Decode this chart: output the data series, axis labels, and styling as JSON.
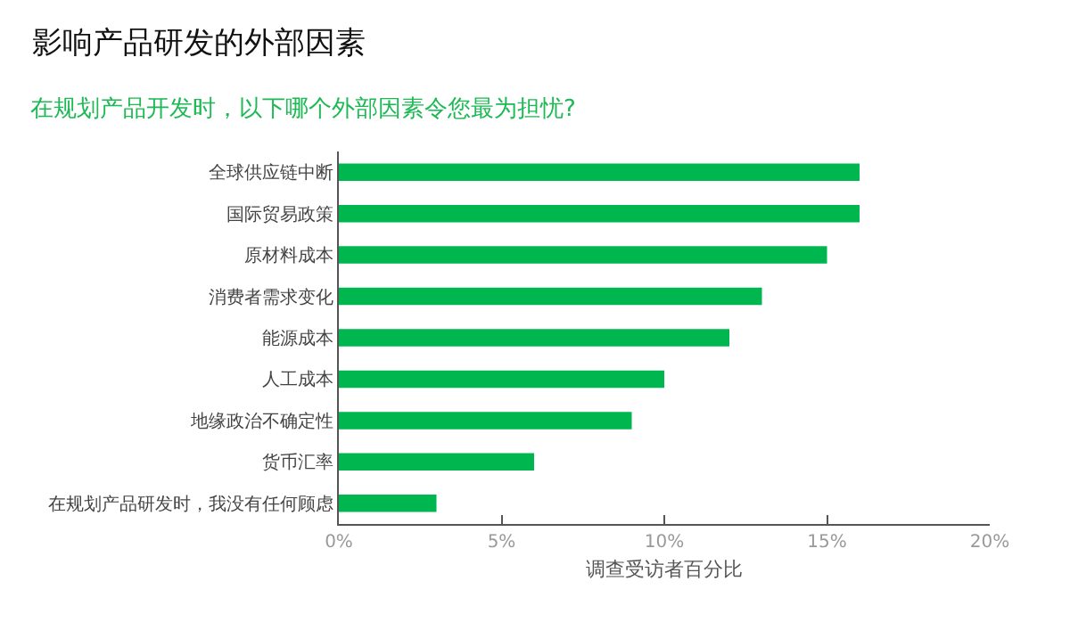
{
  "chart_data": {
    "type": "bar",
    "orientation": "horizontal",
    "title": "影响产品研发的外部因素",
    "subtitle": "在规划产品开发时，以下哪个外部因素令您最为担忧?",
    "xlabel": "调查受访者百分比",
    "categories": [
      "全球供应链中断",
      "国际贸易政策",
      "原材料成本",
      "消费者需求变化",
      "能源成本",
      "人工成本",
      "地缘政治不确定性",
      "货币汇率",
      "在规划产品研发时，我没有任何顾虑"
    ],
    "values": [
      16,
      16,
      15,
      13,
      12,
      10,
      9,
      6,
      3
    ],
    "color": "#00b74f",
    "xlim": [
      0,
      20
    ],
    "xticks": [
      {
        "value": 0,
        "label": "0%"
      },
      {
        "value": 5,
        "label": "5%"
      },
      {
        "value": 10,
        "label": "10%"
      },
      {
        "value": 15,
        "label": "15%"
      },
      {
        "value": 20,
        "label": "20%"
      }
    ],
    "grid": false,
    "legend": false
  }
}
